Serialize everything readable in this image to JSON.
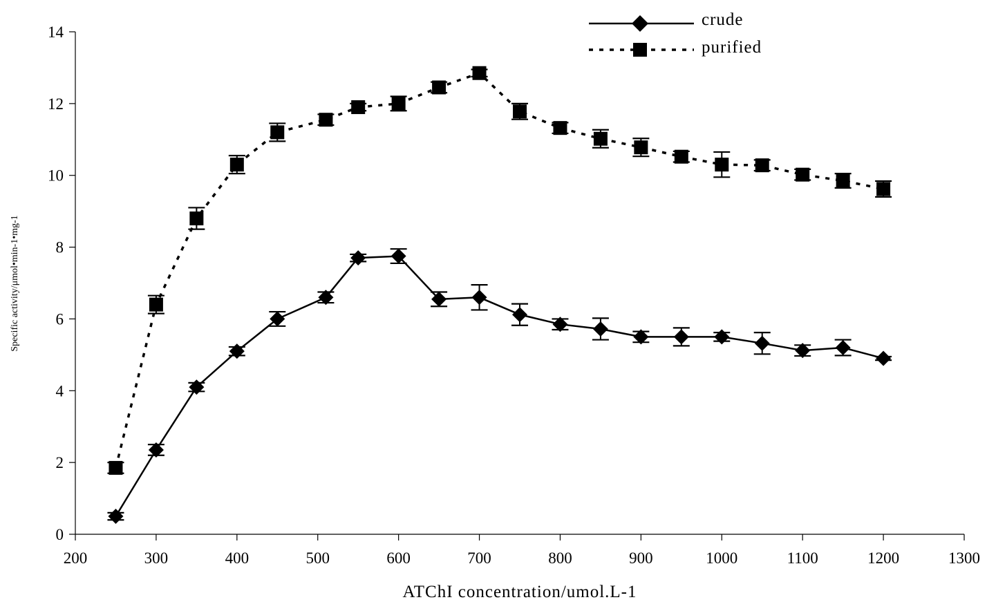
{
  "chart_data": {
    "type": "line",
    "title": "",
    "xlabel": "ATChI concentration/umol.L-1",
    "ylabel": "Specific activity/μmol•min-1•mg-1",
    "xlim": [
      200,
      1300
    ],
    "ylim": [
      0,
      14
    ],
    "x_ticks": [
      200,
      300,
      400,
      500,
      600,
      700,
      800,
      900,
      1000,
      1100,
      1200,
      1300
    ],
    "x_tick_labels": [
      "200",
      "300",
      "400",
      "500",
      "600",
      "700",
      "800",
      "900",
      "1000",
      "1100",
      "1200",
      "1300"
    ],
    "y_ticks": [
      0,
      2,
      4,
      6,
      8,
      10,
      12,
      14
    ],
    "y_tick_labels": [
      "0",
      "2",
      "4",
      "6",
      "8",
      "10",
      "12",
      "14"
    ],
    "grid": false,
    "legend_position": "top-right",
    "series": [
      {
        "name": "crude",
        "line_style": "solid",
        "marker": "diamond",
        "color": "#000000",
        "x": [
          250,
          300,
          350,
          400,
          450,
          510,
          550,
          600,
          650,
          700,
          750,
          800,
          850,
          900,
          950,
          1000,
          1050,
          1100,
          1150,
          1200
        ],
        "y": [
          0.5,
          2.35,
          4.1,
          5.1,
          6.0,
          6.6,
          7.7,
          7.75,
          6.55,
          6.6,
          6.12,
          5.85,
          5.72,
          5.5,
          5.5,
          5.5,
          5.32,
          5.12,
          5.2,
          4.9
        ],
        "error": [
          0.1,
          0.15,
          0.12,
          0.12,
          0.2,
          0.15,
          0.1,
          0.2,
          0.2,
          0.35,
          0.3,
          0.15,
          0.3,
          0.15,
          0.25,
          0.12,
          0.3,
          0.15,
          0.22,
          0.05
        ]
      },
      {
        "name": "purified",
        "line_style": "dotted",
        "marker": "square",
        "color": "#000000",
        "x": [
          250,
          300,
          350,
          400,
          450,
          510,
          550,
          600,
          650,
          700,
          750,
          800,
          850,
          900,
          950,
          1000,
          1050,
          1100,
          1150,
          1200
        ],
        "y": [
          1.85,
          6.4,
          8.8,
          10.3,
          11.2,
          11.55,
          11.9,
          12.0,
          12.45,
          12.85,
          11.78,
          11.32,
          11.02,
          10.78,
          10.52,
          10.3,
          10.28,
          10.02,
          9.85,
          9.62
        ],
        "error": [
          0.15,
          0.25,
          0.3,
          0.25,
          0.25,
          0.15,
          0.1,
          0.2,
          0.15,
          0.1,
          0.22,
          0.15,
          0.25,
          0.25,
          0.15,
          0.35,
          0.15,
          0.15,
          0.2,
          0.22
        ]
      }
    ]
  }
}
